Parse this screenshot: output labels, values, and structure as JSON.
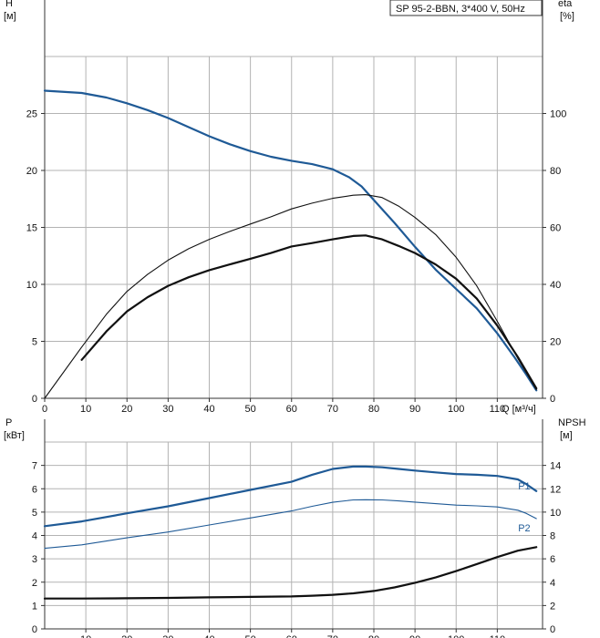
{
  "chart_data": [
    {
      "type": "line",
      "title": "SP 95-2-BBN, 3*400 V, 50Hz",
      "x_title": "Q [м³/ч]",
      "x_ticks": [
        "0",
        "10",
        "20",
        "30",
        "40",
        "50",
        "60",
        "70",
        "80",
        "90",
        "100",
        "110"
      ],
      "xlim": [
        0,
        121
      ],
      "y_left_title": [
        "H",
        "[м]"
      ],
      "y_left_ticks": [
        "0",
        "5",
        "10",
        "15",
        "20",
        "25"
      ],
      "ylim_left": [
        0,
        30
      ],
      "y_right_title": [
        "eta",
        "[%]"
      ],
      "y_right_ticks": [
        "0",
        "20",
        "40",
        "60",
        "80",
        "100"
      ],
      "ylim_right": [
        0,
        120
      ],
      "grid": true,
      "series": [
        {
          "axis": "left",
          "color": "#1f5a96",
          "width": 2.2,
          "x": [
            0,
            9,
            15,
            20,
            25,
            30,
            35,
            40,
            45,
            50,
            55,
            60,
            65,
            70,
            74,
            77,
            80,
            85,
            90,
            95,
            100,
            105,
            110,
            114,
            117,
            119.5
          ],
          "y": [
            27.0,
            26.8,
            26.4,
            25.9,
            25.3,
            24.6,
            23.8,
            23.0,
            22.3,
            21.7,
            21.2,
            20.85,
            20.55,
            20.1,
            19.4,
            18.6,
            17.4,
            15.4,
            13.3,
            11.3,
            9.6,
            7.9,
            5.7,
            3.7,
            2.1,
            0.7
          ]
        },
        {
          "axis": "right",
          "color": "#111111",
          "width": 1.1,
          "x": [
            0,
            9,
            15,
            20,
            25,
            30,
            35,
            40,
            45,
            50,
            55,
            60,
            65,
            70,
            75,
            78,
            82,
            86,
            90,
            95,
            100,
            105,
            110,
            115,
            119.5
          ],
          "y": [
            0,
            18,
            29.5,
            37.5,
            43.5,
            48.5,
            52.5,
            55.8,
            58.6,
            61.2,
            63.7,
            66.5,
            68.5,
            70.2,
            71.3,
            71.5,
            70.5,
            67.5,
            63.5,
            57.5,
            49.5,
            39.5,
            27,
            14,
            3
          ]
        },
        {
          "axis": "right",
          "color": "#111111",
          "width": 2.2,
          "x": [
            9,
            15,
            20,
            25,
            30,
            35,
            40,
            45,
            50,
            55,
            60,
            65,
            70,
            75,
            78,
            82,
            86,
            90,
            95,
            100,
            105,
            110,
            115,
            119.5
          ],
          "y": [
            13.5,
            23.5,
            30.5,
            35.5,
            39.5,
            42.5,
            45,
            47,
            49,
            51,
            53.3,
            54.5,
            55.8,
            57,
            57.2,
            55.8,
            53.5,
            51,
            47,
            42,
            35,
            25.5,
            14.5,
            3.5
          ]
        }
      ]
    },
    {
      "type": "line",
      "x_ticks": [
        "10",
        "20",
        "30",
        "40",
        "50",
        "60",
        "70",
        "80",
        "90",
        "100",
        "110"
      ],
      "xlim": [
        0,
        121
      ],
      "y_left_title": [
        "P",
        "[кВт]"
      ],
      "y_left_ticks": [
        "0",
        "1",
        "2",
        "3",
        "4",
        "5",
        "6",
        "7"
      ],
      "ylim_left": [
        0,
        8
      ],
      "y_right_title": [
        "NPSH",
        "[м]"
      ],
      "y_right_ticks": [
        "0",
        "2",
        "4",
        "6",
        "8",
        "10",
        "12",
        "14"
      ],
      "ylim_right": [
        0,
        16
      ],
      "grid": true,
      "series": [
        {
          "name": "P1",
          "axis": "left",
          "color": "#1f5a96",
          "width": 2.2,
          "x": [
            0,
            9,
            20,
            30,
            40,
            50,
            60,
            65,
            70,
            75,
            78,
            82,
            86,
            90,
            95,
            100,
            105,
            110,
            115,
            117,
            119.5
          ],
          "y": [
            4.4,
            4.6,
            4.95,
            5.25,
            5.6,
            5.95,
            6.3,
            6.6,
            6.85,
            6.95,
            6.95,
            6.92,
            6.85,
            6.78,
            6.7,
            6.63,
            6.6,
            6.55,
            6.4,
            6.2,
            5.9
          ]
        },
        {
          "name": "P2",
          "axis": "left",
          "color": "#1f5a96",
          "width": 1.1,
          "x": [
            0,
            9,
            20,
            30,
            40,
            50,
            60,
            65,
            70,
            75,
            78,
            82,
            86,
            90,
            95,
            100,
            105,
            110,
            115,
            117,
            119.5
          ],
          "y": [
            3.45,
            3.6,
            3.9,
            4.15,
            4.45,
            4.75,
            5.05,
            5.25,
            5.42,
            5.52,
            5.53,
            5.52,
            5.48,
            5.43,
            5.36,
            5.3,
            5.27,
            5.22,
            5.08,
            4.95,
            4.72
          ]
        },
        {
          "axis": "right",
          "color": "#111111",
          "width": 2.2,
          "x": [
            0,
            9,
            20,
            30,
            40,
            50,
            60,
            65,
            70,
            75,
            80,
            85,
            90,
            95,
            100,
            105,
            110,
            115,
            119.5
          ],
          "y": [
            2.6,
            2.6,
            2.62,
            2.65,
            2.7,
            2.74,
            2.78,
            2.84,
            2.92,
            3.04,
            3.25,
            3.55,
            3.95,
            4.4,
            4.95,
            5.55,
            6.15,
            6.7,
            7.0
          ]
        }
      ]
    }
  ]
}
